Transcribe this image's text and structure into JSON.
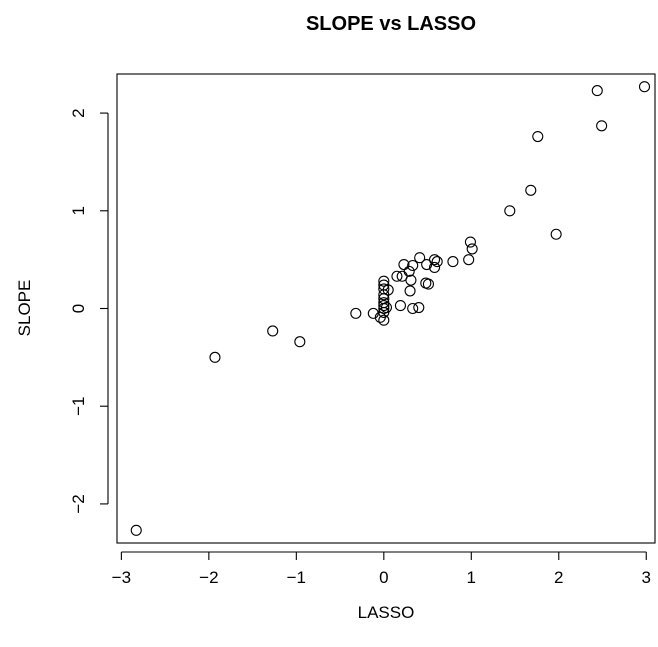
{
  "chart_data": {
    "type": "scatter",
    "title": "SLOPE vs LASSO",
    "xlabel": "LASSO",
    "ylabel": "SLOPE",
    "xlim": [
      -3.05,
      3.1
    ],
    "ylim": [
      -2.4,
      2.4
    ],
    "x_ticks": [
      -3,
      -2,
      -1,
      0,
      1,
      2,
      3
    ],
    "x_tick_labels": [
      "−3",
      "−2",
      "−1",
      "0",
      "1",
      "2",
      "3"
    ],
    "y_ticks": [
      -2,
      -1,
      0,
      1,
      2
    ],
    "y_tick_labels": [
      "−2",
      "−1",
      "0",
      "1",
      "2"
    ],
    "grid": false,
    "legend": "none",
    "point_style": "open-circle",
    "color": "#000000",
    "points": [
      {
        "x": -2.83,
        "y": -2.27
      },
      {
        "x": -1.93,
        "y": -0.5
      },
      {
        "x": -1.27,
        "y": -0.23
      },
      {
        "x": -0.96,
        "y": -0.34
      },
      {
        "x": -0.32,
        "y": -0.05
      },
      {
        "x": -0.12,
        "y": -0.05
      },
      {
        "x": -0.04,
        "y": -0.09
      },
      {
        "x": 0.0,
        "y": -0.12
      },
      {
        "x": 0.0,
        "y": -0.04
      },
      {
        "x": 0.0,
        "y": 0.0
      },
      {
        "x": 0.0,
        "y": 0.03
      },
      {
        "x": 0.0,
        "y": 0.06
      },
      {
        "x": 0.0,
        "y": 0.1
      },
      {
        "x": 0.0,
        "y": 0.14
      },
      {
        "x": 0.0,
        "y": 0.2
      },
      {
        "x": 0.0,
        "y": 0.24
      },
      {
        "x": 0.0,
        "y": 0.28
      },
      {
        "x": 0.03,
        "y": 0.01
      },
      {
        "x": 0.05,
        "y": 0.19
      },
      {
        "x": 0.15,
        "y": 0.33
      },
      {
        "x": 0.19,
        "y": 0.03
      },
      {
        "x": 0.21,
        "y": 0.33
      },
      {
        "x": 0.23,
        "y": 0.45
      },
      {
        "x": 0.29,
        "y": 0.38
      },
      {
        "x": 0.3,
        "y": 0.18
      },
      {
        "x": 0.31,
        "y": 0.29
      },
      {
        "x": 0.33,
        "y": 0.0
      },
      {
        "x": 0.33,
        "y": 0.44
      },
      {
        "x": 0.4,
        "y": 0.01
      },
      {
        "x": 0.41,
        "y": 0.52
      },
      {
        "x": 0.48,
        "y": 0.26
      },
      {
        "x": 0.49,
        "y": 0.45
      },
      {
        "x": 0.51,
        "y": 0.25
      },
      {
        "x": 0.58,
        "y": 0.42
      },
      {
        "x": 0.58,
        "y": 0.5
      },
      {
        "x": 0.61,
        "y": 0.48
      },
      {
        "x": 0.79,
        "y": 0.48
      },
      {
        "x": 0.97,
        "y": 0.5
      },
      {
        "x": 0.99,
        "y": 0.68
      },
      {
        "x": 1.01,
        "y": 0.61
      },
      {
        "x": 1.44,
        "y": 1.0
      },
      {
        "x": 1.68,
        "y": 1.21
      },
      {
        "x": 1.76,
        "y": 1.76
      },
      {
        "x": 1.97,
        "y": 0.76
      },
      {
        "x": 2.44,
        "y": 2.23
      },
      {
        "x": 2.49,
        "y": 1.87
      },
      {
        "x": 2.98,
        "y": 2.27
      }
    ]
  }
}
